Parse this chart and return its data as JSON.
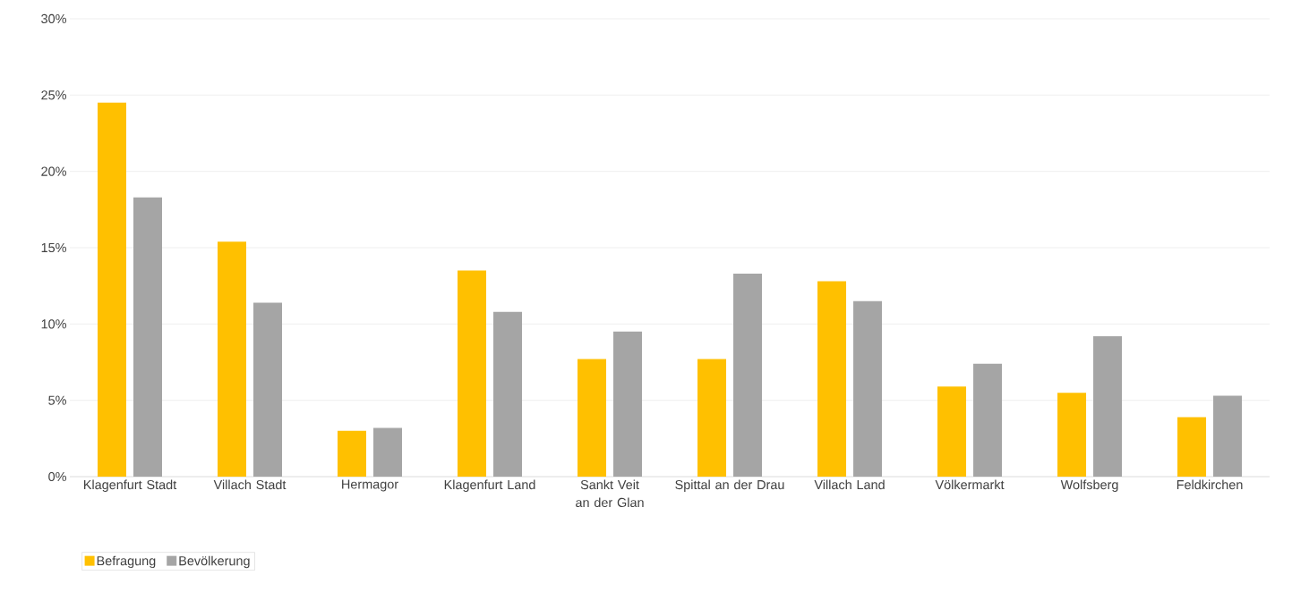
{
  "chart_data": {
    "type": "bar",
    "categories": [
      "Klagenfurt Stadt",
      "Villach Stadt",
      "Hermagor",
      "Klagenfurt Land",
      "Sankt Veit an der Glan",
      "Spittal an der Drau",
      "Villach Land",
      "Völkermarkt",
      "Wolfsberg",
      "Feldkirchen"
    ],
    "series": [
      {
        "name": "Befragung",
        "color": "#ffc000",
        "values": [
          24.5,
          15.4,
          3.0,
          13.5,
          7.7,
          7.7,
          12.8,
          5.9,
          5.5,
          3.9
        ]
      },
      {
        "name": "Bevölkerung",
        "color": "#a5a5a5",
        "values": [
          18.3,
          11.4,
          3.2,
          10.8,
          9.5,
          13.3,
          11.5,
          7.4,
          9.2,
          5.3
        ]
      }
    ],
    "ylim": [
      0,
      30
    ],
    "yticks": [
      {
        "value": 0,
        "label": "0%"
      },
      {
        "value": 5,
        "label": "5%"
      },
      {
        "value": 10,
        "label": "10%"
      },
      {
        "value": 15,
        "label": "15%"
      },
      {
        "value": 20,
        "label": "20%"
      },
      {
        "value": 25,
        "label": "25%"
      },
      {
        "value": 30,
        "label": "30%"
      }
    ],
    "grid": "y",
    "legend": "bottom left"
  }
}
